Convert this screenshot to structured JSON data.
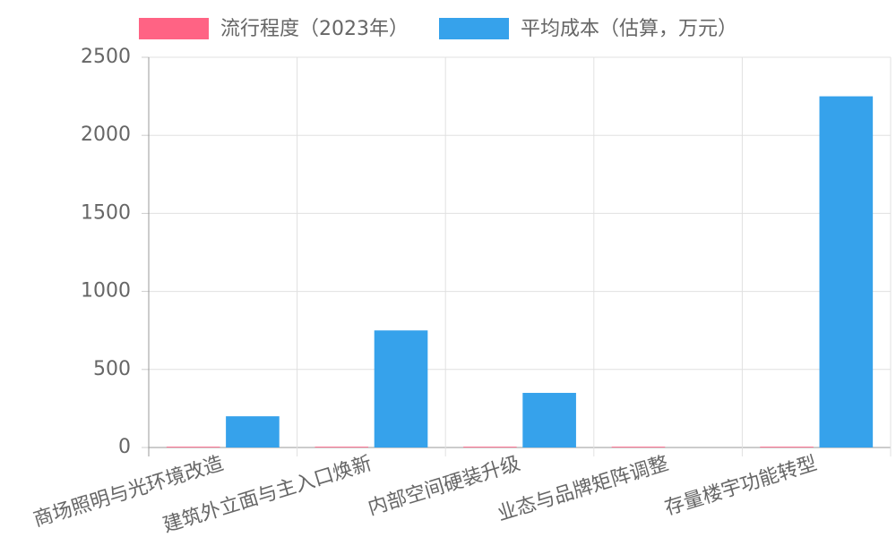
{
  "chart_data": {
    "type": "bar",
    "categories": [
      "商场照明与光环境改造",
      "建筑外立面与主入口焕新",
      "内部空间硬装升级",
      "业态与品牌矩阵调整",
      "存量楼宇功能转型"
    ],
    "series": [
      {
        "name": "流行程度（2023年）",
        "color": "#ff6384",
        "values": [
          5,
          5,
          5,
          5,
          5
        ]
      },
      {
        "name": "平均成本（估算，万元）",
        "color": "#36a2eb",
        "values": [
          200,
          750,
          350,
          0,
          2250
        ]
      }
    ],
    "ylim": [
      0,
      2500
    ],
    "yticks": [
      0,
      500,
      1000,
      1500,
      2000,
      2500
    ],
    "grid": true,
    "legend": "top"
  }
}
